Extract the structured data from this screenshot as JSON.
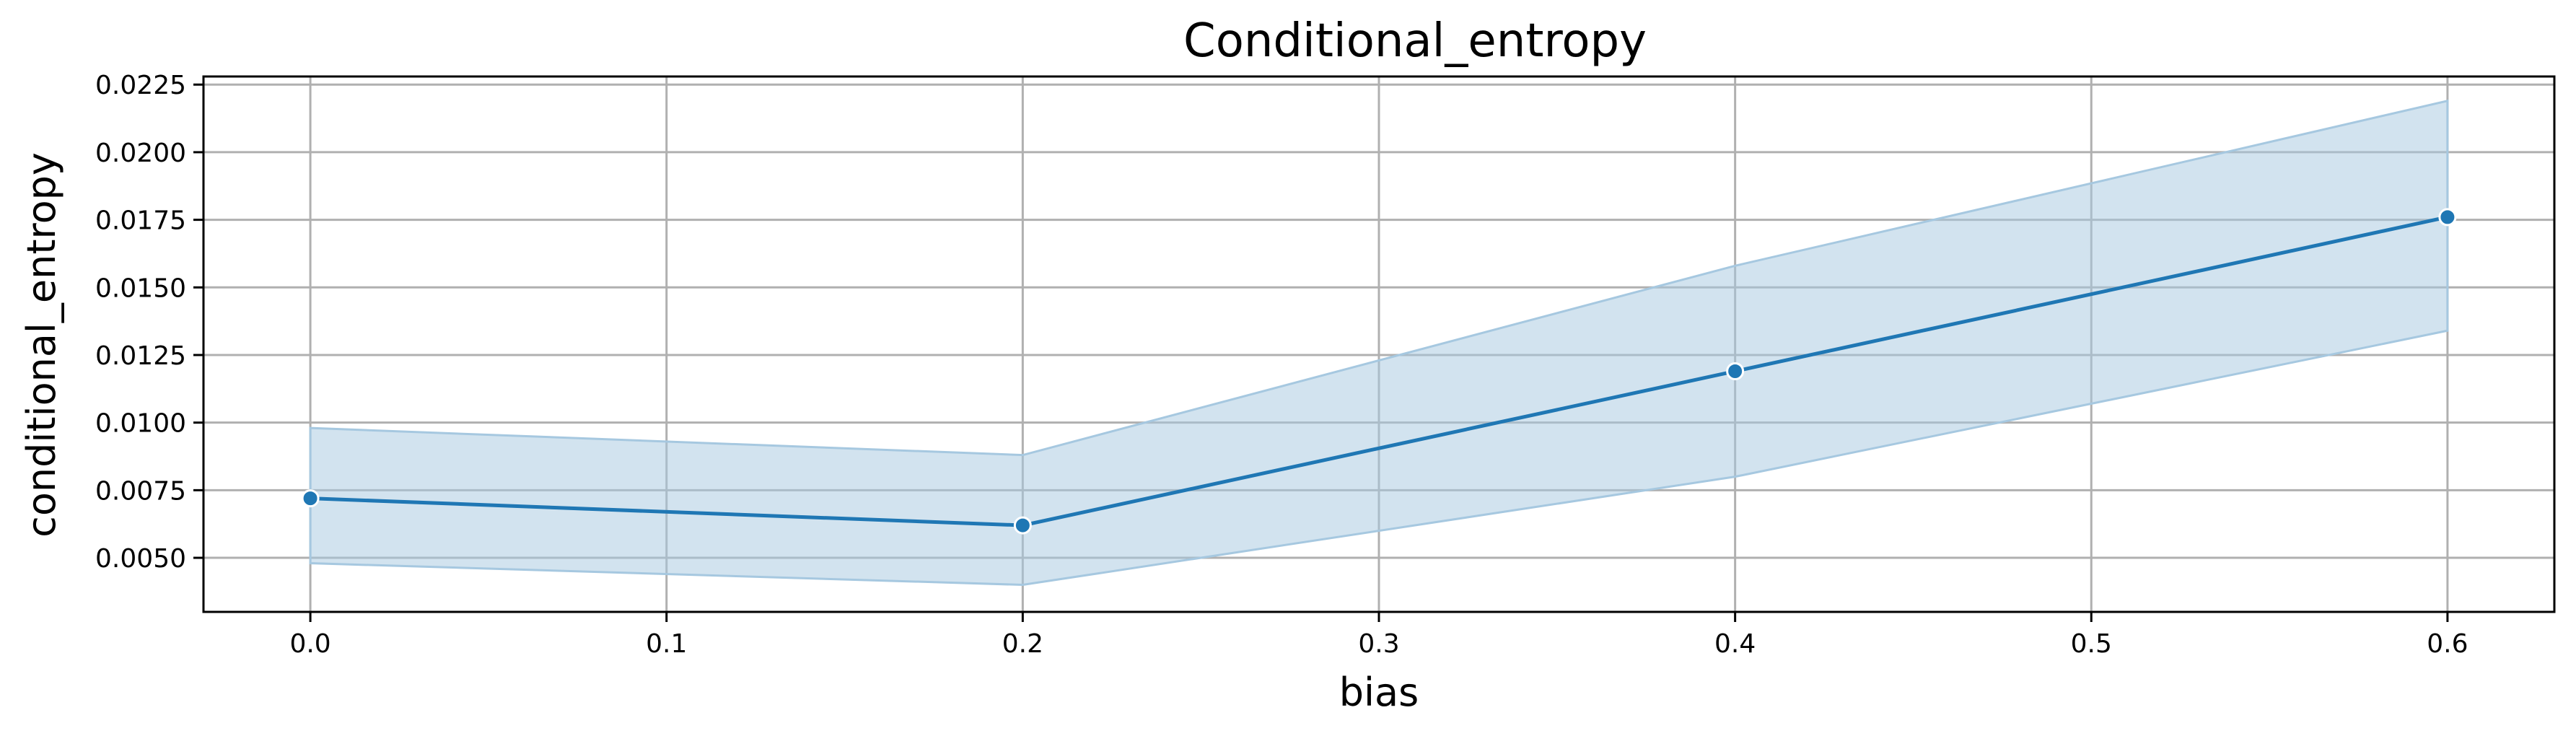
{
  "chart_data": {
    "type": "line",
    "title": "Conditional_entropy",
    "xlabel": "bias",
    "ylabel": "conditional_entropy",
    "xlim": [
      -0.03,
      0.63
    ],
    "ylim": [
      0.003,
      0.0228
    ],
    "xticks": [
      0.0,
      0.1,
      0.2,
      0.3,
      0.4,
      0.5,
      0.6
    ],
    "xtick_labels": [
      "0.0",
      "0.1",
      "0.2",
      "0.3",
      "0.4",
      "0.5",
      "0.6"
    ],
    "yticks": [
      0.005,
      0.0075,
      0.01,
      0.0125,
      0.015,
      0.0175,
      0.02,
      0.0225
    ],
    "ytick_labels": [
      "0.0050",
      "0.0075",
      "0.0100",
      "0.0125",
      "0.0150",
      "0.0175",
      "0.0200",
      "0.0225"
    ],
    "grid": true,
    "series": [
      {
        "x": [
          0.0,
          0.2,
          0.4,
          0.6
        ],
        "y": [
          0.0072,
          0.0062,
          0.0119,
          0.0176
        ],
        "ci_lower": [
          0.0048,
          0.004,
          0.008,
          0.0134
        ],
        "ci_upper": [
          0.0098,
          0.0088,
          0.0158,
          0.0219
        ],
        "color": "#1f77b4",
        "band_color": "#a6c8e0"
      }
    ]
  }
}
